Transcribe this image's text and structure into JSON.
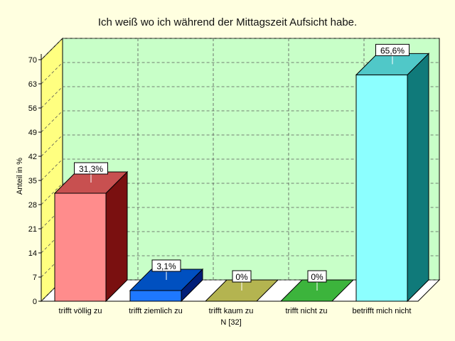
{
  "chart_data": {
    "type": "bar",
    "title": "Ich weiß wo ich während der Mittagszeit Aufsicht habe.",
    "ylabel": "Anteil in %",
    "xlabel": "N [32]",
    "ylim": [
      0,
      70
    ],
    "yticks": [
      0,
      7,
      14,
      21,
      28,
      35,
      42,
      49,
      56,
      63,
      70
    ],
    "grid": true,
    "categories": [
      "trifft völlig zu",
      "trifft ziemlich zu",
      "trifft kaum zu",
      "trifft nicht zu",
      "betrifft mich nicht"
    ],
    "values": [
      31.3,
      3.1,
      0,
      0,
      65.6
    ],
    "value_labels": [
      "31,3%",
      "3,1%",
      "0%",
      "0%",
      "65,6%"
    ],
    "colors": [
      {
        "front": "#ff8c8c",
        "top": "#c85050",
        "side": "#7a1010"
      },
      {
        "front": "#1e78ff",
        "top": "#0050c0",
        "side": "#001e78"
      },
      {
        "front": "#c8c864",
        "top": "#b4b450",
        "side": "#6e6e14"
      },
      {
        "front": "#50c850",
        "top": "#3cb43c",
        "side": "#146414"
      },
      {
        "front": "#8cffff",
        "top": "#50c8c8",
        "side": "#107a7a"
      }
    ],
    "plot_background": "#c8ffc8",
    "left_wall": "#ffff80"
  }
}
